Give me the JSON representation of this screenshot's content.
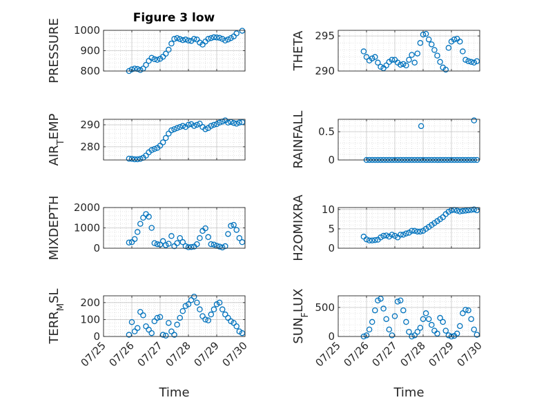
{
  "figure": {
    "title": "Figure 3 low"
  },
  "colors": {
    "marker": "#0072BD",
    "axis": "#262626",
    "grid": "#b0b0b0",
    "minor_grid": "#dcdcdc"
  },
  "chart_data": [
    {
      "type": "scatter",
      "ylabel": "PRESSURE",
      "xlabel": "",
      "xlim": [
        "07/25",
        "07/30"
      ],
      "ylim": [
        800,
        1000
      ],
      "yticks": [
        800,
        900,
        1000
      ],
      "xticks": [
        "07/25",
        "07/26",
        "07/27",
        "07/28",
        "07/29",
        "07/30"
      ],
      "grid": true,
      "minor_grid": true,
      "show_x_ticklabels": false,
      "x": [
        0.9,
        1.0,
        1.1,
        1.2,
        1.3,
        1.4,
        1.5,
        1.6,
        1.7,
        1.8,
        1.9,
        2.0,
        2.1,
        2.2,
        2.3,
        2.4,
        2.5,
        2.6,
        2.7,
        2.8,
        2.9,
        3.0,
        3.1,
        3.2,
        3.3,
        3.4,
        3.5,
        3.6,
        3.7,
        3.8,
        3.9,
        4.0,
        4.1,
        4.2,
        4.3,
        4.4,
        4.5,
        4.6,
        4.7,
        4.9
      ],
      "y": [
        800,
        808,
        812,
        810,
        805,
        812,
        830,
        850,
        865,
        858,
        855,
        860,
        870,
        885,
        905,
        935,
        958,
        962,
        957,
        952,
        955,
        950,
        948,
        958,
        955,
        940,
        930,
        945,
        958,
        962,
        966,
        965,
        963,
        958,
        950,
        955,
        962,
        970,
        985,
        998
      ]
    },
    {
      "type": "scatter",
      "ylabel": "THETA",
      "xlabel": "",
      "xlim": [
        "07/25",
        "07/30"
      ],
      "ylim": [
        290,
        295.8
      ],
      "yticks": [
        290,
        295
      ],
      "xticks": [
        "07/25",
        "07/26",
        "07/27",
        "07/28",
        "07/29",
        "07/30"
      ],
      "grid": true,
      "minor_grid": true,
      "show_x_ticklabels": false,
      "x": [
        0.9,
        1.0,
        1.1,
        1.2,
        1.3,
        1.4,
        1.5,
        1.6,
        1.7,
        1.8,
        1.9,
        2.0,
        2.1,
        2.2,
        2.3,
        2.4,
        2.5,
        2.6,
        2.7,
        2.8,
        2.9,
        3.0,
        3.1,
        3.2,
        3.3,
        3.4,
        3.5,
        3.6,
        3.7,
        3.8,
        3.9,
        4.0,
        4.1,
        4.2,
        4.3,
        4.4,
        4.5,
        4.6,
        4.7,
        4.8,
        4.9
      ],
      "y": [
        292.8,
        292.0,
        291.5,
        291.8,
        292.0,
        291.2,
        290.6,
        290.4,
        290.8,
        291.3,
        291.6,
        291.6,
        291.2,
        290.9,
        291.0,
        290.8,
        291.6,
        292.3,
        291.2,
        292.5,
        294.0,
        295.2,
        295.3,
        294.5,
        293.8,
        293.0,
        292.2,
        291.3,
        290.5,
        290.2,
        293.3,
        294.2,
        294.5,
        294.6,
        294.2,
        292.8,
        291.6,
        291.4,
        291.3,
        291.2,
        291.4
      ]
    },
    {
      "type": "scatter",
      "ylabel": "AIR_TEMP",
      "xlabel": "",
      "xlim": [
        "07/25",
        "07/30"
      ],
      "ylim": [
        274,
        292.5
      ],
      "yticks": [
        280,
        290
      ],
      "xticks": [
        "07/25",
        "07/26",
        "07/27",
        "07/28",
        "07/29",
        "07/30"
      ],
      "grid": true,
      "minor_grid": true,
      "show_x_ticklabels": false,
      "x": [
        0.9,
        1.0,
        1.1,
        1.2,
        1.3,
        1.4,
        1.5,
        1.6,
        1.7,
        1.8,
        1.9,
        2.0,
        2.1,
        2.2,
        2.3,
        2.4,
        2.5,
        2.6,
        2.7,
        2.8,
        2.9,
        3.0,
        3.1,
        3.2,
        3.3,
        3.4,
        3.5,
        3.6,
        3.7,
        3.8,
        3.9,
        4.0,
        4.1,
        4.2,
        4.3,
        4.4,
        4.5,
        4.6,
        4.7,
        4.8,
        4.9
      ],
      "y": [
        274.6,
        274.5,
        274.3,
        274.3,
        274.5,
        275.0,
        276.0,
        277.5,
        278.5,
        279.0,
        279.5,
        280.5,
        282.0,
        284.0,
        286.0,
        287.5,
        288.0,
        288.5,
        289.0,
        289.5,
        289.0,
        290.0,
        290.3,
        289.5,
        290.0,
        290.5,
        289.0,
        288.0,
        288.5,
        289.5,
        290.0,
        290.3,
        291.0,
        291.5,
        292.0,
        291.0,
        291.3,
        290.8,
        290.5,
        291.0,
        291.2
      ]
    },
    {
      "type": "scatter",
      "ylabel": "RAINFALL",
      "xlabel": "",
      "xlim": [
        "07/25",
        "07/30"
      ],
      "ylim": [
        0,
        0.72
      ],
      "yticks": [
        0,
        0.5
      ],
      "xticks": [
        "07/25",
        "07/26",
        "07/27",
        "07/28",
        "07/29",
        "07/30"
      ],
      "grid": true,
      "minor_grid": true,
      "show_x_ticklabels": false,
      "x": [
        1.0,
        1.1,
        1.2,
        1.3,
        1.4,
        1.5,
        1.6,
        1.7,
        1.8,
        1.9,
        2.0,
        2.1,
        2.2,
        2.3,
        2.4,
        2.5,
        2.6,
        2.7,
        2.8,
        2.9,
        3.0,
        3.1,
        3.2,
        3.3,
        3.4,
        3.5,
        3.6,
        3.7,
        3.8,
        3.9,
        4.0,
        4.1,
        4.2,
        4.3,
        4.4,
        4.5,
        4.6,
        4.7,
        4.8,
        4.9,
        2.93,
        4.8
      ],
      "y": [
        0,
        0,
        0,
        0,
        0,
        0,
        0,
        0,
        0,
        0,
        0,
        0,
        0,
        0,
        0,
        0,
        0,
        0,
        0,
        0,
        0,
        0,
        0,
        0,
        0,
        0,
        0,
        0,
        0,
        0,
        0,
        0,
        0,
        0,
        0,
        0,
        0,
        0,
        0,
        0,
        0.6,
        0.7
      ]
    },
    {
      "type": "scatter",
      "ylabel": "MIXDEPTH",
      "xlabel": "",
      "xlim": [
        "07/25",
        "07/30"
      ],
      "ylim": [
        0,
        2000
      ],
      "yticks": [
        0,
        1000,
        2000
      ],
      "xticks": [
        "07/25",
        "07/26",
        "07/27",
        "07/28",
        "07/29",
        "07/30"
      ],
      "grid": true,
      "minor_grid": true,
      "show_x_ticklabels": false,
      "x": [
        0.9,
        1.0,
        1.1,
        1.2,
        1.3,
        1.4,
        1.5,
        1.6,
        1.7,
        1.8,
        1.9,
        2.0,
        2.1,
        2.2,
        2.3,
        2.4,
        2.5,
        2.6,
        2.7,
        2.8,
        2.9,
        3.0,
        3.1,
        3.2,
        3.3,
        3.4,
        3.5,
        3.6,
        3.7,
        3.8,
        3.9,
        4.0,
        4.1,
        4.2,
        4.3,
        4.4,
        4.5,
        4.6,
        4.7,
        4.8,
        4.9
      ],
      "y": [
        280,
        300,
        450,
        800,
        1200,
        1500,
        1680,
        1550,
        1000,
        250,
        200,
        180,
        350,
        150,
        220,
        600,
        100,
        250,
        500,
        300,
        100,
        50,
        60,
        80,
        200,
        500,
        850,
        980,
        550,
        200,
        180,
        120,
        80,
        40,
        100,
        700,
        1100,
        1150,
        900,
        500,
        300
      ]
    },
    {
      "type": "scatter",
      "ylabel": "H2OMIXRA",
      "xlabel": "",
      "xlim": [
        "07/25",
        "07/30"
      ],
      "ylim": [
        0,
        10.5
      ],
      "yticks": [
        0,
        5,
        10
      ],
      "xticks": [
        "07/25",
        "07/26",
        "07/27",
        "07/28",
        "07/29",
        "07/30"
      ],
      "grid": true,
      "minor_grid": true,
      "show_x_ticklabels": false,
      "x": [
        0.9,
        1.0,
        1.1,
        1.2,
        1.3,
        1.4,
        1.5,
        1.6,
        1.7,
        1.8,
        1.9,
        2.0,
        2.1,
        2.2,
        2.3,
        2.4,
        2.5,
        2.6,
        2.7,
        2.8,
        2.9,
        3.0,
        3.1,
        3.2,
        3.3,
        3.4,
        3.5,
        3.6,
        3.7,
        3.8,
        3.9,
        4.0,
        4.1,
        4.2,
        4.3,
        4.4,
        4.5,
        4.6,
        4.7,
        4.8,
        4.9
      ],
      "y": [
        3.0,
        2.3,
        2.0,
        2.0,
        2.1,
        2.2,
        2.8,
        3.2,
        3.3,
        3.0,
        3.5,
        3.2,
        2.8,
        3.5,
        3.5,
        3.8,
        4.0,
        4.5,
        4.5,
        4.3,
        4.3,
        4.5,
        5.0,
        5.5,
        6.0,
        6.5,
        7.0,
        7.5,
        8.0,
        8.8,
        9.4,
        9.8,
        9.9,
        9.7,
        9.5,
        9.6,
        9.7,
        9.8,
        9.9,
        10.0,
        9.8
      ]
    },
    {
      "type": "scatter",
      "ylabel": "TERR_MSL",
      "xlabel": "Time",
      "xlim": [
        "07/25",
        "07/30"
      ],
      "ylim": [
        0,
        240
      ],
      "yticks": [
        0,
        100,
        200
      ],
      "xticks": [
        "07/25",
        "07/26",
        "07/27",
        "07/28",
        "07/29",
        "07/30"
      ],
      "grid": true,
      "minor_grid": true,
      "show_x_ticklabels": true,
      "x": [
        0.9,
        1.0,
        1.1,
        1.2,
        1.3,
        1.4,
        1.5,
        1.6,
        1.7,
        1.8,
        1.9,
        2.0,
        2.1,
        2.2,
        2.3,
        2.4,
        2.5,
        2.6,
        2.7,
        2.8,
        2.9,
        3.0,
        3.1,
        3.2,
        3.3,
        3.4,
        3.5,
        3.6,
        3.7,
        3.8,
        3.9,
        4.0,
        4.1,
        4.2,
        4.3,
        4.4,
        4.5,
        4.6,
        4.7,
        4.8,
        4.9
      ],
      "y": [
        10,
        85,
        30,
        50,
        145,
        125,
        60,
        40,
        20,
        90,
        110,
        115,
        10,
        5,
        80,
        30,
        10,
        70,
        110,
        150,
        180,
        190,
        215,
        235,
        200,
        160,
        120,
        100,
        95,
        130,
        160,
        190,
        200,
        160,
        130,
        110,
        90,
        80,
        60,
        30,
        20
      ]
    },
    {
      "type": "scatter",
      "ylabel": "SUN_FLUX",
      "xlabel": "Time",
      "xlim": [
        "07/25",
        "07/30"
      ],
      "ylim": [
        0,
        700
      ],
      "yticks": [
        0,
        500
      ],
      "xticks": [
        "07/25",
        "07/26",
        "07/27",
        "07/28",
        "07/29",
        "07/30"
      ],
      "grid": true,
      "minor_grid": true,
      "show_x_ticklabels": true,
      "x": [
        0.9,
        1.0,
        1.1,
        1.2,
        1.3,
        1.4,
        1.5,
        1.6,
        1.7,
        1.8,
        1.9,
        2.0,
        2.1,
        2.2,
        2.3,
        2.4,
        2.5,
        2.6,
        2.7,
        2.8,
        2.9,
        3.0,
        3.1,
        3.2,
        3.3,
        3.4,
        3.5,
        3.6,
        3.7,
        3.8,
        3.9,
        4.0,
        4.1,
        4.2,
        4.3,
        4.4,
        4.5,
        4.6,
        4.7,
        4.8,
        4.9
      ],
      "y": [
        0,
        20,
        120,
        250,
        450,
        620,
        650,
        480,
        300,
        120,
        20,
        350,
        600,
        620,
        450,
        250,
        80,
        0,
        20,
        80,
        150,
        300,
        400,
        300,
        200,
        100,
        50,
        320,
        250,
        100,
        20,
        0,
        10,
        50,
        180,
        400,
        460,
        450,
        300,
        120,
        30
      ]
    }
  ]
}
